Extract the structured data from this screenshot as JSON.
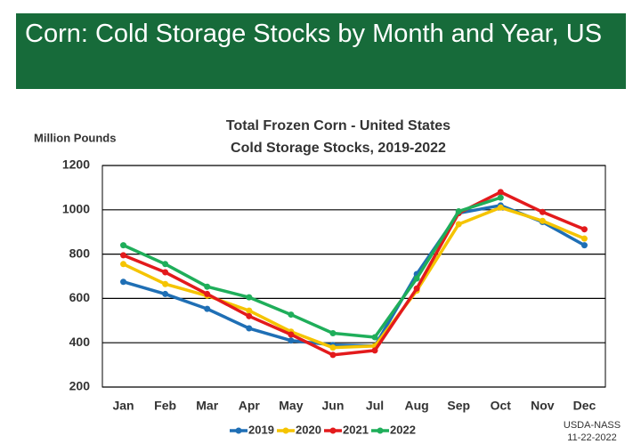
{
  "header": {
    "title": "Corn: Cold Storage Stocks by Month and Year, US"
  },
  "chart_data": {
    "type": "line",
    "title": "Total Frozen Corn - United States",
    "subtitle": "Cold Storage Stocks, 2019-2022",
    "y_label": "Million Pounds",
    "source": "USDA-NASS",
    "date": "11-22-2022",
    "categories": [
      "Jan",
      "Feb",
      "Mar",
      "Apr",
      "May",
      "Jun",
      "Jul",
      "Aug",
      "Sep",
      "Oct",
      "Nov",
      "Dec"
    ],
    "series": [
      {
        "name": "2019",
        "color": "#1f6fb5",
        "values": [
          675,
          620,
          553,
          465,
          410,
          390,
          385,
          710,
          985,
          1020,
          945,
          840
        ]
      },
      {
        "name": "2020",
        "color": "#f5c400",
        "values": [
          755,
          665,
          612,
          545,
          450,
          378,
          385,
          635,
          935,
          1010,
          950,
          870
        ]
      },
      {
        "name": "2021",
        "color": "#e31a1c",
        "values": [
          795,
          718,
          620,
          520,
          437,
          345,
          365,
          645,
          985,
          1080,
          990,
          912
        ]
      },
      {
        "name": "2022",
        "color": "#1fae5a",
        "values": [
          840,
          755,
          653,
          605,
          527,
          443,
          425,
          690,
          993,
          1055,
          null,
          null
        ]
      }
    ],
    "ylim": [
      200,
      1200
    ],
    "yticks": [
      200,
      400,
      600,
      800,
      1000,
      1200
    ],
    "grid": true,
    "legend": "bottom"
  }
}
